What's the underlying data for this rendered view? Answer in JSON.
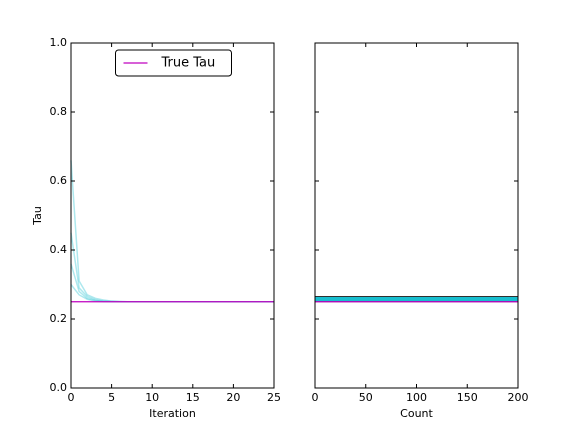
{
  "chart_data": [
    {
      "type": "line",
      "xlabel": "Iteration",
      "ylabel": "Tau",
      "x": [
        0,
        1,
        2,
        3,
        4,
        5,
        6,
        7,
        8,
        9,
        10,
        11,
        12,
        13,
        14,
        15,
        16,
        17,
        18,
        19,
        20,
        21,
        22,
        23,
        24,
        25
      ],
      "series": [
        {
          "color": "#17becf",
          "opacity": 0.35,
          "values": [
            0.66,
            0.31,
            0.27,
            0.26,
            0.255,
            0.252,
            0.251,
            0.25,
            0.25,
            0.25,
            0.25,
            0.25,
            0.25,
            0.25,
            0.25,
            0.25,
            0.25,
            0.25,
            0.25,
            0.25,
            0.25,
            0.25,
            0.25,
            0.25,
            0.25,
            0.25
          ]
        },
        {
          "color": "#17becf",
          "opacity": 0.35,
          "values": [
            0.45,
            0.29,
            0.265,
            0.256,
            0.252,
            0.251,
            0.25,
            0.25,
            0.25,
            0.25,
            0.25,
            0.25,
            0.25,
            0.25,
            0.25,
            0.25,
            0.25,
            0.25,
            0.25,
            0.25,
            0.25,
            0.25,
            0.25,
            0.25,
            0.25,
            0.25
          ]
        },
        {
          "color": "#17becf",
          "opacity": 0.35,
          "values": [
            0.36,
            0.28,
            0.26,
            0.254,
            0.251,
            0.25,
            0.25,
            0.25,
            0.25,
            0.25,
            0.25,
            0.25,
            0.25,
            0.25,
            0.25,
            0.25,
            0.25,
            0.25,
            0.25,
            0.25,
            0.25,
            0.25,
            0.25,
            0.25,
            0.25,
            0.25
          ]
        },
        {
          "color": "#17becf",
          "opacity": 0.35,
          "values": [
            0.3,
            0.27,
            0.257,
            0.252,
            0.25,
            0.25,
            0.25,
            0.25,
            0.25,
            0.25,
            0.25,
            0.25,
            0.25,
            0.25,
            0.25,
            0.25,
            0.25,
            0.25,
            0.25,
            0.25,
            0.25,
            0.25,
            0.25,
            0.25,
            0.25,
            0.25
          ]
        }
      ],
      "reference_line": {
        "name": "True Tau",
        "value": 0.25,
        "color": "#bf00bf"
      },
      "legend": "upper center",
      "xlim": [
        0,
        25
      ],
      "xticks": [
        0,
        5,
        10,
        15,
        20,
        25
      ],
      "ylim": [
        0,
        1
      ],
      "yticks": [
        {
          "value": 0,
          "label": "0.0"
        },
        0.2,
        0.4,
        0.6,
        0.8,
        {
          "value": 1,
          "label": "1.0"
        }
      ]
    },
    {
      "type": "histogram",
      "orientation": "horizontal",
      "xlabel": "Count",
      "bins": [
        0.25,
        0.265
      ],
      "counts": [
        200
      ],
      "color": "#17becf",
      "reference_line": {
        "value": 0.25,
        "color": "#bf00bf"
      },
      "xlim": [
        0,
        200
      ],
      "xticks": [
        0,
        50,
        100,
        150,
        200
      ],
      "ylim": [
        0,
        1
      ],
      "yticks": [
        0,
        0.2,
        0.4,
        0.6,
        0.8,
        1
      ]
    }
  ]
}
